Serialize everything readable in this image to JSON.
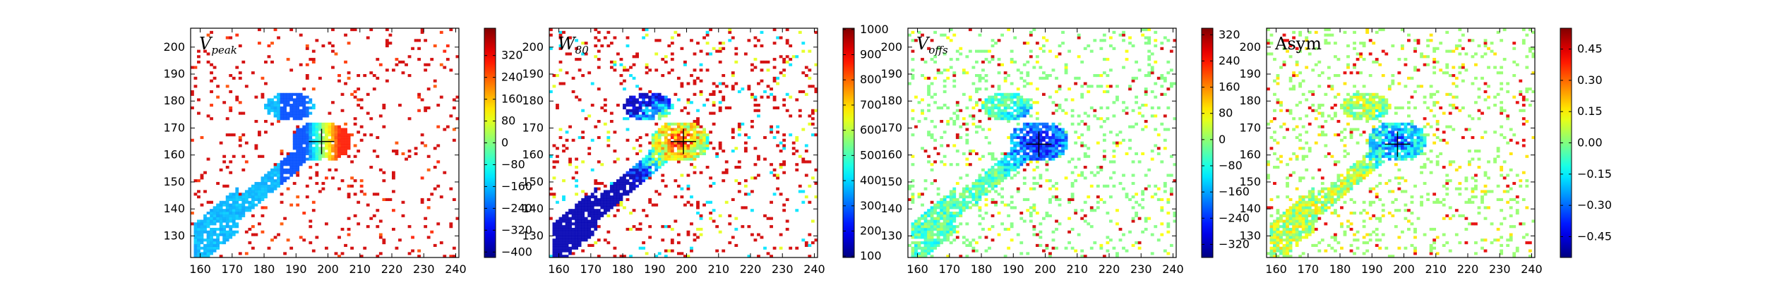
{
  "chart_data": [
    {
      "type": "heatmap",
      "title": "",
      "panel_label": {
        "main": "V",
        "sub": "peak"
      },
      "xlabel": "",
      "ylabel": "",
      "xlim": [
        157,
        241
      ],
      "ylim": [
        122,
        207
      ],
      "x_ticks": [
        "160",
        "170",
        "180",
        "190",
        "200",
        "210",
        "220",
        "230",
        "240"
      ],
      "y_ticks": [
        "130",
        "140",
        "150",
        "160",
        "170",
        "180",
        "190",
        "200"
      ],
      "x_tick_values": [
        160,
        170,
        180,
        190,
        200,
        210,
        220,
        230,
        240
      ],
      "y_tick_values": [
        130,
        140,
        150,
        160,
        170,
        180,
        190,
        200
      ],
      "colorbar": {
        "range": [
          -420,
          420
        ],
        "ticks": [
          "320",
          "240",
          "160",
          "80",
          "0",
          "−80",
          "−160",
          "−240",
          "−320",
          "−400"
        ],
        "tick_values": [
          320,
          240,
          160,
          80,
          0,
          -80,
          -160,
          -240,
          -320,
          -400
        ]
      },
      "marker": {
        "x": 198,
        "y": 165,
        "shape": "plus"
      },
      "field": "velocity",
      "grid": false
    },
    {
      "type": "heatmap",
      "title": "",
      "panel_label": {
        "main": "W",
        "sub": "80"
      },
      "xlabel": "",
      "ylabel": "",
      "xlim": [
        157,
        241
      ],
      "ylim": [
        122,
        207
      ],
      "x_ticks": [
        "160",
        "170",
        "180",
        "190",
        "200",
        "210",
        "220",
        "230",
        "240"
      ],
      "y_ticks": [
        "130",
        "140",
        "150",
        "160",
        "170",
        "180",
        "190",
        "200"
      ],
      "x_tick_values": [
        160,
        170,
        180,
        190,
        200,
        210,
        220,
        230,
        240
      ],
      "y_tick_values": [
        130,
        140,
        150,
        160,
        170,
        180,
        190,
        200
      ],
      "colorbar": {
        "range": [
          95,
          1005
        ],
        "ticks": [
          "1000",
          "900",
          "800",
          "700",
          "600",
          "500",
          "400",
          "300",
          "200",
          "100"
        ],
        "tick_values": [
          1000,
          900,
          800,
          700,
          600,
          500,
          400,
          300,
          200,
          100
        ]
      },
      "marker": {
        "x": 199,
        "y": 165,
        "shape": "plus"
      },
      "field": "width",
      "grid": false
    },
    {
      "type": "heatmap",
      "title": "",
      "panel_label": {
        "main": "V",
        "sub": "offs"
      },
      "xlabel": "",
      "ylabel": "",
      "xlim": [
        157,
        241
      ],
      "ylim": [
        122,
        207
      ],
      "x_ticks": [
        "160",
        "170",
        "180",
        "190",
        "200",
        "210",
        "220",
        "230",
        "240"
      ],
      "y_ticks": [
        "130",
        "140",
        "150",
        "160",
        "170",
        "180",
        "190",
        "200"
      ],
      "x_tick_values": [
        160,
        170,
        180,
        190,
        200,
        210,
        220,
        230,
        240
      ],
      "y_tick_values": [
        130,
        140,
        150,
        160,
        170,
        180,
        190,
        200
      ],
      "colorbar": {
        "range": [
          -360,
          340
        ],
        "ticks": [
          "320",
          "240",
          "160",
          "80",
          "0",
          "−80",
          "−160",
          "−240",
          "−320"
        ],
        "tick_values": [
          320,
          240,
          160,
          80,
          0,
          -80,
          -160,
          -240,
          -320
        ]
      },
      "marker": {
        "x": 198,
        "y": 164,
        "shape": "plus"
      },
      "field": "offset",
      "grid": false
    },
    {
      "type": "heatmap",
      "title": "",
      "panel_label": {
        "main": "Asym",
        "sub": ""
      },
      "xlabel": "",
      "ylabel": "",
      "xlim": [
        157,
        241
      ],
      "ylim": [
        122,
        207
      ],
      "x_ticks": [
        "160",
        "170",
        "180",
        "190",
        "200",
        "210",
        "220",
        "230",
        "240"
      ],
      "y_ticks": [
        "130",
        "140",
        "150",
        "160",
        "170",
        "180",
        "190",
        "200"
      ],
      "x_tick_values": [
        160,
        170,
        180,
        190,
        200,
        210,
        220,
        230,
        240
      ],
      "y_tick_values": [
        130,
        140,
        150,
        160,
        170,
        180,
        190,
        200
      ],
      "colorbar": {
        "range": [
          -0.55,
          0.55
        ],
        "ticks": [
          "0.45",
          "0.30",
          "0.15",
          "0.00",
          "−0.15",
          "−0.30",
          "−0.45"
        ],
        "tick_values": [
          0.45,
          0.3,
          0.15,
          0.0,
          -0.15,
          -0.3,
          -0.45
        ]
      },
      "marker": {
        "x": 198,
        "y": 164,
        "shape": "plus"
      },
      "field": "asym",
      "grid": false
    }
  ]
}
